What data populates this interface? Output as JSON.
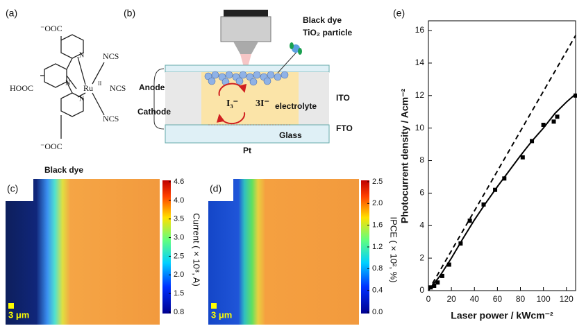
{
  "panels": {
    "a": {
      "label": "(a)",
      "top_group": "⁻OOC",
      "left_group": "HOOC",
      "ru": "Ru",
      "ru_ox": "II",
      "ncs": [
        "NCS",
        "NCS",
        "NCS"
      ],
      "nitrogen": [
        "N",
        "N",
        "N"
      ],
      "bottom_group": "⁻OOC",
      "caption": "Black dye"
    },
    "b": {
      "label": "(b)",
      "dye": "Black dye",
      "particle": "TiO₂ particle",
      "anode": "Anode",
      "cathode": "Cathode",
      "ion1": "I₃⁻",
      "ion2": "3I⁻",
      "electrolyte": "electrolyte",
      "ito": "ITO",
      "fto": "FTO",
      "glass": "Glass",
      "pt": "Pt"
    },
    "c": {
      "label": "(c)",
      "colorbar_label": "Current ( × 10⁸, A)",
      "colorbar_ticks": [
        "4.6",
        "4.0",
        "3.5",
        "3.0",
        "2.5",
        "2.0",
        "1.5",
        "0.8"
      ],
      "scale_bar": "3 μm"
    },
    "d": {
      "label": "(d)",
      "colorbar_label": "IPCE ( × 10², %)",
      "colorbar_ticks": [
        "2.5",
        "2.0",
        "1.6",
        "1.2",
        "0.8",
        "0.4",
        "0.0"
      ],
      "scale_bar": "3 μm"
    },
    "e": {
      "label": "(e)"
    }
  },
  "chart_data": {
    "type": "scatter",
    "xlabel": "Laser power / kWcm⁻²",
    "ylabel": "Photocurrent  density / Acm⁻²",
    "xlim": [
      0,
      128
    ],
    "ylim": [
      0,
      16.6
    ],
    "xticks": [
      0,
      20,
      40,
      60,
      80,
      100,
      120
    ],
    "yticks": [
      0,
      2,
      4,
      6,
      8,
      10,
      12,
      14,
      16
    ],
    "series": [
      {
        "style": "markers",
        "color": "#000000",
        "x": [
          2,
          5,
          8,
          12,
          18,
          28,
          36,
          48,
          58,
          66,
          82,
          90,
          100,
          109,
          112,
          128
        ],
        "values": [
          0.2,
          0.3,
          0.5,
          0.9,
          1.6,
          2.9,
          4.3,
          5.3,
          6.2,
          6.9,
          8.2,
          9.2,
          10.2,
          10.4,
          10.7,
          12.0
        ]
      },
      {
        "style": "solid",
        "color": "#000000",
        "x": [
          0,
          10,
          20,
          30,
          40,
          50,
          60,
          70,
          80,
          90,
          100,
          110,
          120,
          128
        ],
        "values": [
          0,
          0.9,
          2.0,
          3.2,
          4.35,
          5.4,
          6.4,
          7.35,
          8.3,
          9.2,
          10.0,
          10.9,
          11.6,
          12.1
        ]
      },
      {
        "style": "dashed",
        "color": "#000000",
        "x": [
          0,
          128
        ],
        "values": [
          0,
          15.7
        ]
      }
    ]
  }
}
